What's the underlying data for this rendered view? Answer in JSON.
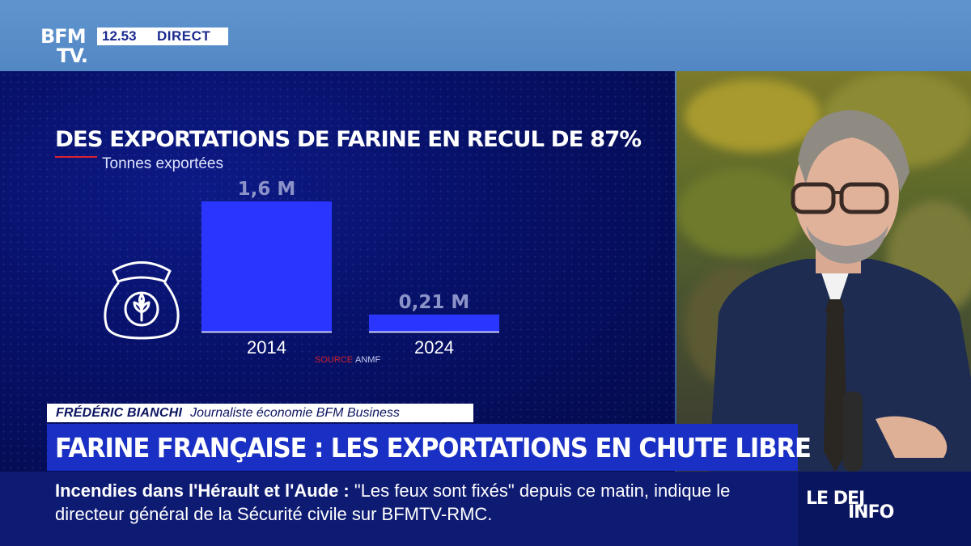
{
  "channel": {
    "logo_line1": "BFM",
    "logo_line2": "TV.",
    "time": "12.53",
    "live_label": "DIRECT"
  },
  "colors": {
    "bar_fill": "#2a36ff",
    "title_accent": "#e02030",
    "panel_bg": "#061066",
    "headline_bg": "#1a2fc4"
  },
  "icons": [
    "flour-sack-icon",
    "wheat-icon"
  ],
  "chart_data": {
    "type": "bar",
    "title": "DES EXPORTATIONS DE FARINE EN RECUL DE 87%",
    "ylabel": "Tonnes exportées",
    "categories": [
      "2014",
      "2024"
    ],
    "values": [
      1.6,
      0.21
    ],
    "data_labels": [
      "1,6 M",
      "0,21 M"
    ],
    "ylim": [
      0,
      1.6
    ],
    "unit": "M",
    "grid": false,
    "source_prefix": "SOURCE",
    "source": "ANMF"
  },
  "lower_third": {
    "speaker_name": "FRÉDÉRIC BIANCHI",
    "speaker_role": "Journaliste économie BFM Business",
    "headline": "FARINE FRANÇAISE : LES EXPORTATIONS EN CHUTE LIBRE"
  },
  "ticker": {
    "topic": "Incendies dans l'Hérault et l'Aude  :",
    "text": " \"Les feux sont fixés\" depuis ce matin, indique le directeur général de la Sécurité civile sur BFMTV-RMC."
  },
  "show": {
    "logo_line1": "LE DEJ",
    "logo_line2": "INFO"
  }
}
